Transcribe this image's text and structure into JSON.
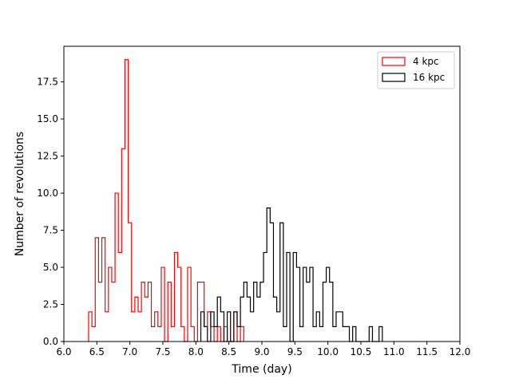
{
  "chart_data": {
    "type": "histogram",
    "xlabel": "Time (day)",
    "ylabel": "Number of revolutions",
    "xlim": [
      6.0,
      12.0
    ],
    "ylim": [
      0,
      19.9
    ],
    "xticks": [
      "6.0",
      "6.5",
      "7.0",
      "7.5",
      "8.0",
      "8.5",
      "9.0",
      "9.5",
      "10.0",
      "10.5",
      "11.0",
      "11.5",
      "12.0"
    ],
    "yticks": [
      "0.0",
      "2.5",
      "5.0",
      "7.5",
      "10.0",
      "12.5",
      "15.0",
      "17.5"
    ],
    "legend": {
      "position": "top-right"
    },
    "series": [
      {
        "name": "4 kpc",
        "color": "#ff0000",
        "bins": [
          [
            6.375,
            6.425,
            2
          ],
          [
            6.425,
            6.475,
            1
          ],
          [
            6.475,
            6.525,
            7
          ],
          [
            6.525,
            6.575,
            4
          ],
          [
            6.575,
            6.625,
            7
          ],
          [
            6.625,
            6.675,
            2
          ],
          [
            6.675,
            6.725,
            5
          ],
          [
            6.725,
            6.775,
            4
          ],
          [
            6.775,
            6.825,
            10
          ],
          [
            6.825,
            6.875,
            6
          ],
          [
            6.875,
            6.925,
            13
          ],
          [
            6.925,
            6.975,
            19
          ],
          [
            6.975,
            7.025,
            8
          ],
          [
            7.025,
            7.075,
            2
          ],
          [
            7.075,
            7.125,
            3
          ],
          [
            7.125,
            7.175,
            2
          ],
          [
            7.175,
            7.225,
            4
          ],
          [
            7.225,
            7.275,
            3
          ],
          [
            7.275,
            7.325,
            4
          ],
          [
            7.325,
            7.375,
            1
          ],
          [
            7.375,
            7.425,
            2
          ],
          [
            7.425,
            7.475,
            1
          ],
          [
            7.475,
            7.525,
            5
          ],
          [
            7.525,
            7.575,
            0
          ],
          [
            7.575,
            7.625,
            4
          ],
          [
            7.625,
            7.675,
            1
          ],
          [
            7.675,
            7.725,
            6
          ],
          [
            7.725,
            7.775,
            5
          ],
          [
            7.775,
            7.825,
            1
          ],
          [
            7.825,
            7.875,
            0
          ],
          [
            7.875,
            7.925,
            5
          ],
          [
            7.925,
            7.975,
            1
          ],
          [
            7.975,
            8.025,
            0
          ],
          [
            8.025,
            8.075,
            4
          ],
          [
            8.075,
            8.125,
            4
          ],
          [
            8.125,
            8.175,
            1
          ],
          [
            8.175,
            8.225,
            2
          ],
          [
            8.225,
            8.275,
            1
          ],
          [
            8.275,
            8.325,
            0
          ],
          [
            8.325,
            8.375,
            1
          ],
          [
            8.375,
            8.425,
            0
          ],
          [
            8.425,
            8.475,
            1
          ],
          [
            8.475,
            8.525,
            0
          ],
          [
            8.525,
            8.575,
            0
          ],
          [
            8.575,
            8.625,
            2
          ],
          [
            8.625,
            8.675,
            0
          ],
          [
            8.675,
            8.725,
            1
          ]
        ]
      },
      {
        "name": "16 kpc",
        "color": "#000000",
        "bins": [
          [
            8.075,
            8.125,
            2
          ],
          [
            8.125,
            8.175,
            1
          ],
          [
            8.175,
            8.225,
            0
          ],
          [
            8.225,
            8.275,
            2
          ],
          [
            8.275,
            8.325,
            1
          ],
          [
            8.325,
            8.375,
            3
          ],
          [
            8.375,
            8.425,
            2
          ],
          [
            8.425,
            8.475,
            0
          ],
          [
            8.475,
            8.525,
            2
          ],
          [
            8.525,
            8.575,
            0
          ],
          [
            8.575,
            8.625,
            2
          ],
          [
            8.625,
            8.675,
            1
          ],
          [
            8.675,
            8.725,
            3
          ],
          [
            8.725,
            8.775,
            4
          ],
          [
            8.775,
            8.825,
            3
          ],
          [
            8.825,
            8.875,
            2
          ],
          [
            8.875,
            8.925,
            4
          ],
          [
            8.925,
            8.975,
            3
          ],
          [
            8.975,
            9.025,
            4
          ],
          [
            9.025,
            9.075,
            6
          ],
          [
            9.075,
            9.125,
            9
          ],
          [
            9.125,
            9.175,
            8
          ],
          [
            9.175,
            9.225,
            3
          ],
          [
            9.225,
            9.275,
            2
          ],
          [
            9.275,
            9.325,
            8
          ],
          [
            9.325,
            9.375,
            1
          ],
          [
            9.375,
            9.425,
            6
          ],
          [
            9.425,
            9.475,
            0
          ],
          [
            9.475,
            9.525,
            6
          ],
          [
            9.525,
            9.575,
            5
          ],
          [
            9.575,
            9.625,
            1
          ],
          [
            9.625,
            9.675,
            5
          ],
          [
            9.675,
            9.725,
            4
          ],
          [
            9.725,
            9.775,
            5
          ],
          [
            9.775,
            9.825,
            1
          ],
          [
            9.825,
            9.875,
            2
          ],
          [
            9.875,
            9.925,
            1
          ],
          [
            9.925,
            9.975,
            4
          ],
          [
            9.975,
            10.025,
            5
          ],
          [
            10.025,
            10.075,
            4
          ],
          [
            10.075,
            10.125,
            1
          ],
          [
            10.125,
            10.175,
            2
          ],
          [
            10.175,
            10.225,
            2
          ],
          [
            10.225,
            10.275,
            1
          ],
          [
            10.275,
            10.325,
            1
          ],
          [
            10.325,
            10.375,
            0
          ],
          [
            10.375,
            10.425,
            1
          ],
          [
            10.425,
            10.475,
            0
          ],
          [
            10.475,
            10.525,
            0
          ],
          [
            10.525,
            10.575,
            0
          ],
          [
            10.575,
            10.625,
            0
          ],
          [
            10.625,
            10.675,
            1
          ],
          [
            10.675,
            10.725,
            0
          ],
          [
            10.725,
            10.775,
            0
          ],
          [
            10.775,
            10.825,
            1
          ]
        ]
      }
    ]
  }
}
